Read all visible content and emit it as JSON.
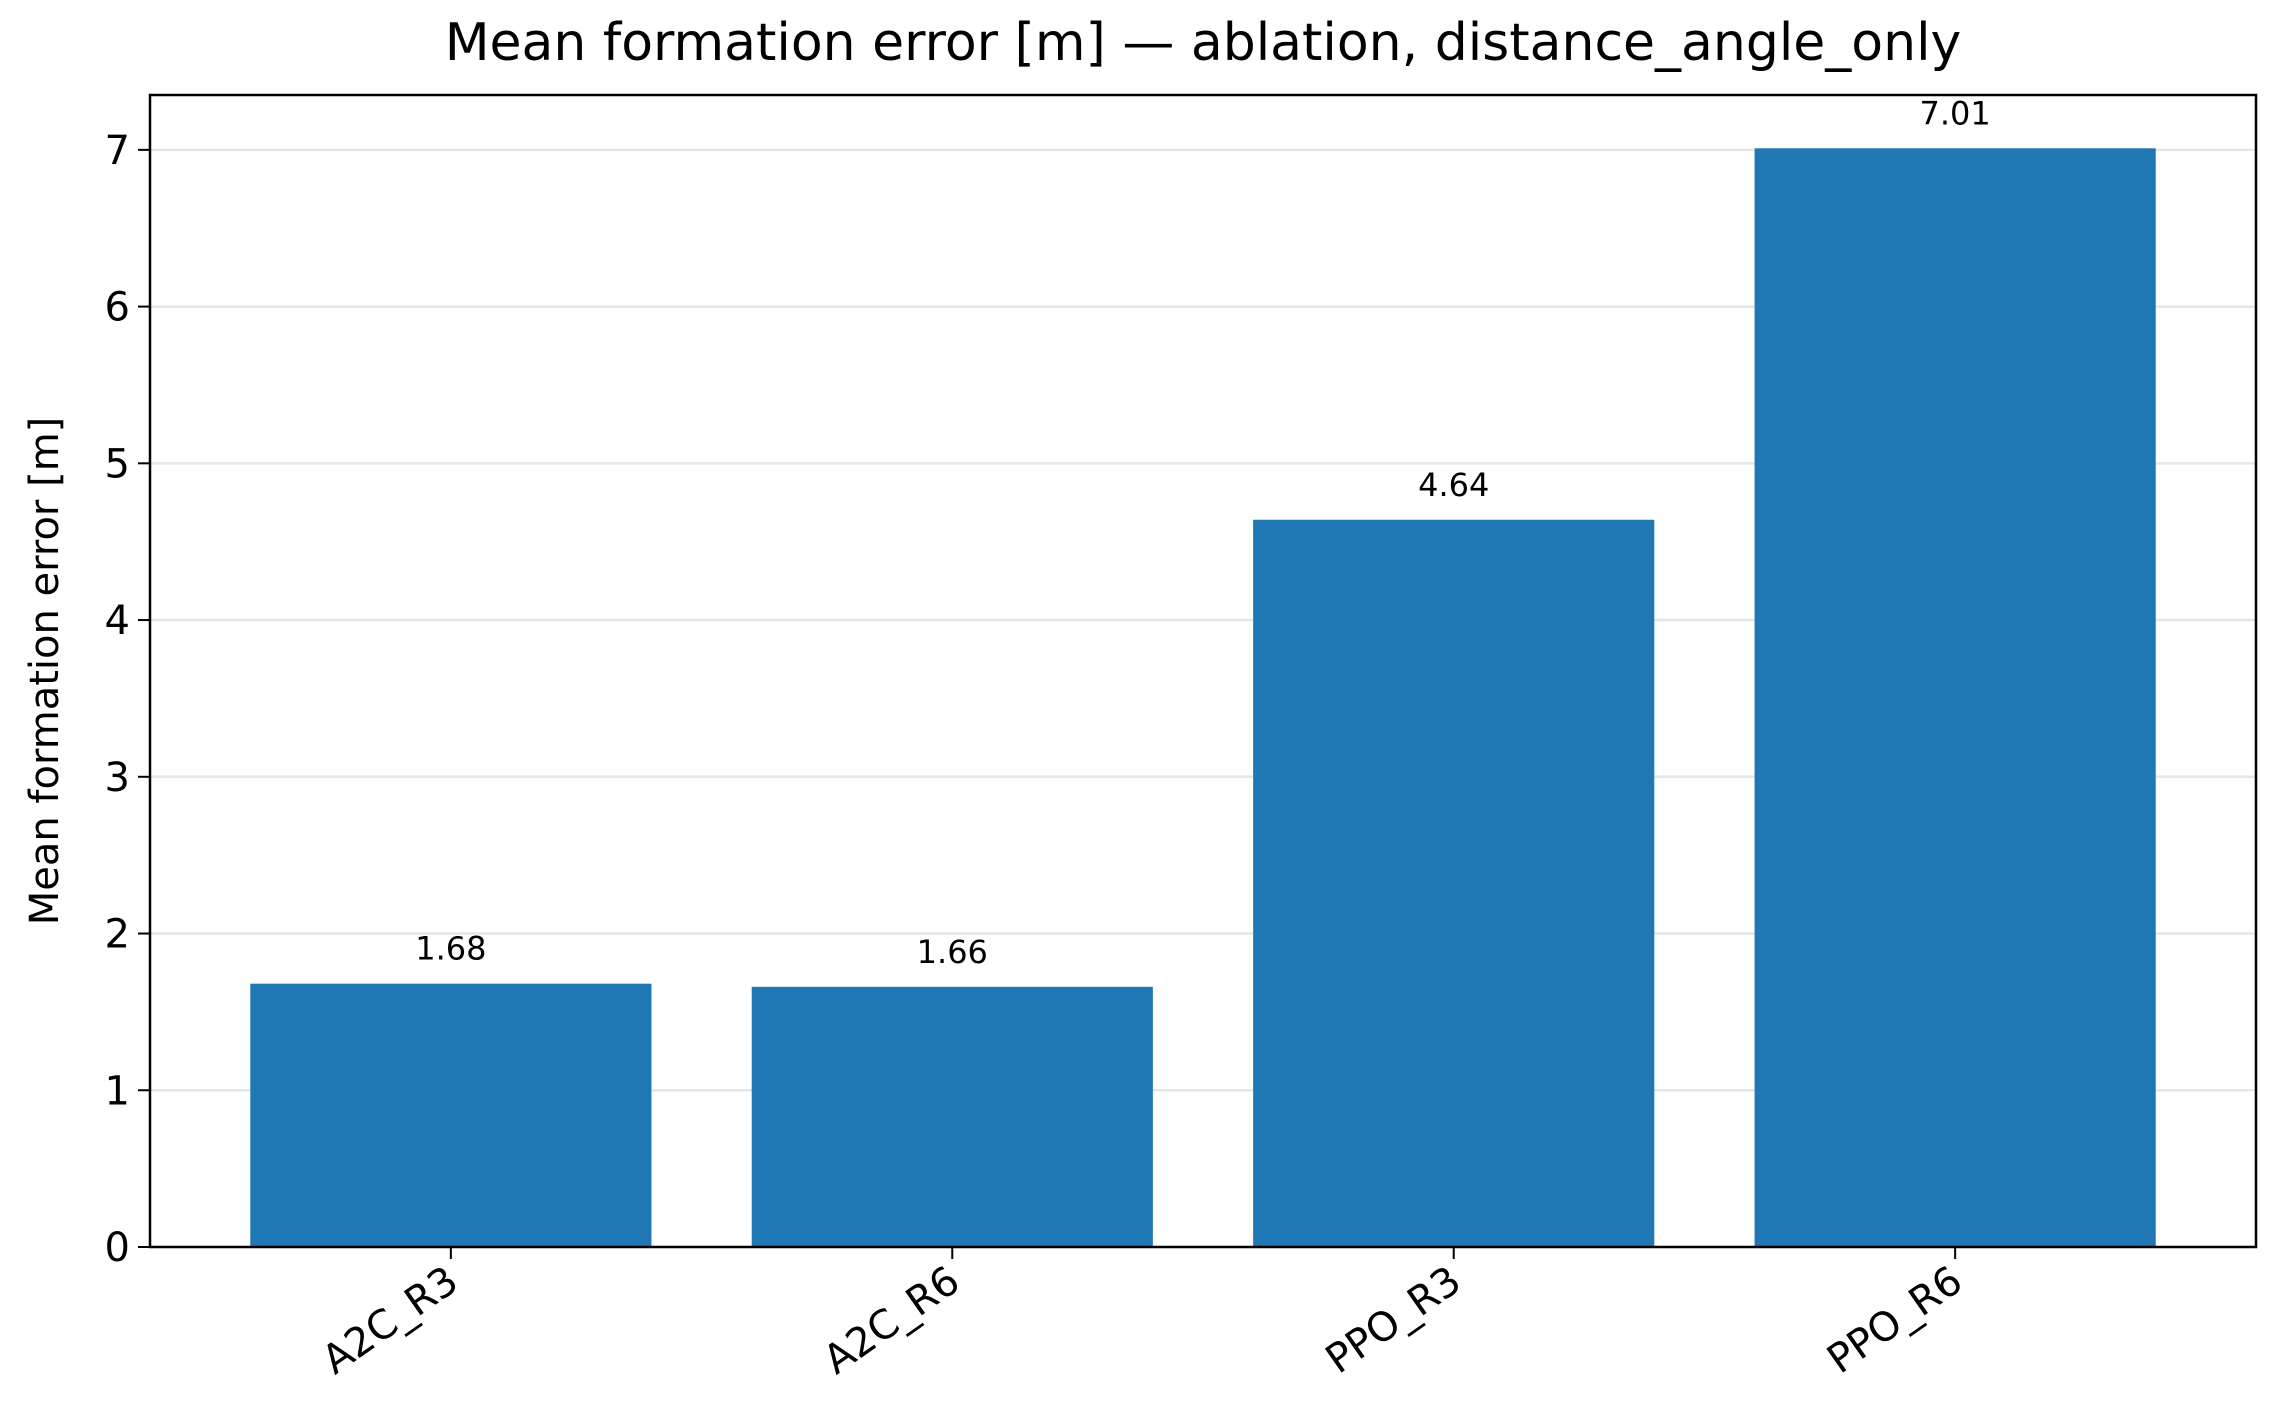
{
  "chart_data": {
    "type": "bar",
    "title": "Mean formation error [m] — ablation, distance_angle_only",
    "y_label": "Mean formation error [m]",
    "categories": [
      "A2C_R3",
      "A2C_R6",
      "PPO_R3",
      "PPO_R6"
    ],
    "values": [
      1.68,
      1.66,
      4.64,
      7.01
    ],
    "color": "#1f77b4",
    "ylim": [
      0,
      7.35
    ],
    "yticks": [
      0,
      1,
      2,
      3,
      4,
      5,
      6,
      7
    ],
    "grid": true
  }
}
